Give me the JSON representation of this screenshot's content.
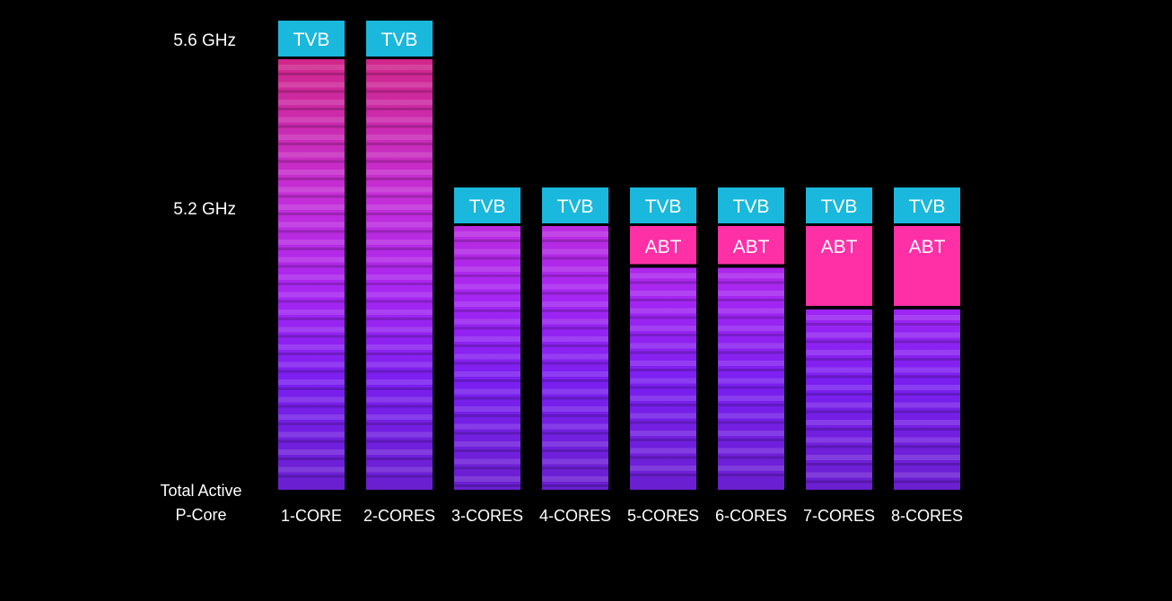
{
  "chart_data": {
    "type": "bar",
    "title": "",
    "xlabel": [
      "Total Active",
      "P-Core"
    ],
    "ylabel": "",
    "y_tick_labels": [
      {
        "label": "5.6 GHz",
        "value": 5.6
      },
      {
        "label": "5.2 GHz",
        "value": 5.2
      }
    ],
    "categories": [
      "1-CORE",
      "2-CORES",
      "3-CORES",
      "4-CORES",
      "5-CORES",
      "6-CORES",
      "7-CORES",
      "8-CORES"
    ],
    "series": [
      {
        "name": "",
        "values": [
          5.6,
          5.6,
          5.2,
          5.2,
          5.1,
          5.1,
          5.0,
          5.0
        ]
      }
    ],
    "boost_tags": [
      {
        "categories": [
          "1-CORE",
          "2-CORES",
          "3-CORES",
          "4-CORES",
          "5-CORES",
          "6-CORES",
          "7-CORES",
          "8-CORES"
        ],
        "label": "TVB",
        "color": "#1ab8dc"
      },
      {
        "categories": [
          "5-CORES",
          "6-CORES",
          "7-CORES",
          "8-CORES"
        ],
        "label": "ABT",
        "color": "#ff2fa6",
        "extends_to": 5.2
      }
    ],
    "colors": {
      "background": "#000000",
      "bar_top": "#d0278a",
      "bar_mid": "#b41ee6",
      "bar_bottom": "#6a1fd8",
      "tvb": "#1ab8dc",
      "abt": "#ff2fa6",
      "text": "#ffffff"
    },
    "grid": false,
    "legend": "none"
  }
}
